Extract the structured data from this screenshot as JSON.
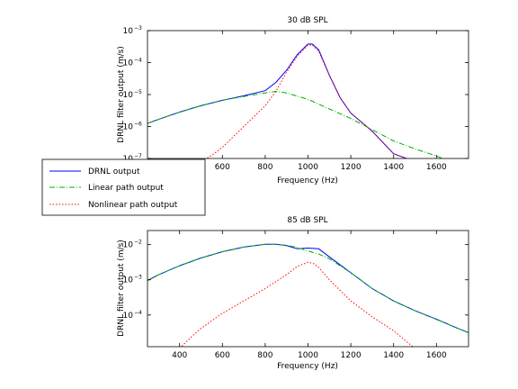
{
  "chart_data": [
    {
      "type": "line",
      "title": "30 dB SPL",
      "xlabel": "Frequency (Hz)",
      "ylabel": "DRNL filter output (m/s)",
      "xlim": [
        250,
        1750
      ],
      "ylim_log10": [
        -7,
        -3
      ],
      "yscale": "log",
      "x_ticks": [
        600,
        800,
        1000,
        1200,
        1400,
        1600
      ],
      "y_ticks": [
        {
          "base": "10",
          "exp": "−3",
          "log": -3
        },
        {
          "base": "10",
          "exp": "−4",
          "log": -4
        },
        {
          "base": "10",
          "exp": "−5",
          "log": -5
        },
        {
          "base": "10",
          "exp": "−6",
          "log": -6
        },
        {
          "base": "10",
          "exp": "−7",
          "log": -7
        }
      ],
      "series": [
        {
          "name": "DRNL output",
          "color": "#0000ff",
          "dash": "",
          "x": [
            250,
            300,
            400,
            500,
            600,
            700,
            800,
            850,
            900,
            950,
            1000,
            1020,
            1050,
            1100,
            1150,
            1200,
            1300,
            1400,
            1500,
            1600,
            1700,
            1750
          ],
          "log_y": [
            -5.9,
            -5.78,
            -5.55,
            -5.35,
            -5.18,
            -5.04,
            -4.88,
            -4.62,
            -4.24,
            -3.75,
            -3.42,
            -3.42,
            -3.6,
            -4.4,
            -5.1,
            -5.58,
            -6.15,
            -6.85,
            -7.1,
            -7.3,
            -7.6,
            -7.7
          ]
        },
        {
          "name": "Linear path output",
          "color": "#00b000",
          "dash": "6,2,1,2",
          "x": [
            250,
            300,
            400,
            500,
            600,
            700,
            800,
            850,
            900,
            1000,
            1100,
            1200,
            1300,
            1400,
            1500,
            1600,
            1700
          ],
          "log_y": [
            -5.9,
            -5.78,
            -5.55,
            -5.35,
            -5.18,
            -5.06,
            -4.95,
            -4.9,
            -4.95,
            -5.15,
            -5.45,
            -5.75,
            -6.1,
            -6.45,
            -6.7,
            -6.92,
            -7.2
          ]
        },
        {
          "name": "Nonlinear path output",
          "color": "#ff0000",
          "dash": "1.5,2",
          "x": [
            480,
            550,
            600,
            700,
            800,
            850,
            900,
            950,
            1000,
            1020,
            1050,
            1100,
            1150,
            1200,
            1300,
            1400,
            1500,
            1600,
            1700
          ],
          "log_y": [
            -7.2,
            -6.9,
            -6.65,
            -6.0,
            -5.35,
            -4.9,
            -4.3,
            -3.8,
            -3.45,
            -3.45,
            -3.65,
            -4.4,
            -5.1,
            -5.58,
            -6.15,
            -6.85,
            -7.1,
            -7.3,
            -7.6
          ]
        }
      ]
    },
    {
      "type": "line",
      "title": "85 dB SPL",
      "xlabel": "Frequency (Hz)",
      "ylabel": "DRNL filter output (m/s)",
      "xlim": [
        250,
        1750
      ],
      "ylim_log10": [
        -4.9,
        -1.6
      ],
      "yscale": "log",
      "x_ticks": [
        400,
        600,
        800,
        1000,
        1200,
        1400,
        1600
      ],
      "y_ticks": [
        {
          "base": "10",
          "exp": "−2",
          "log": -2
        },
        {
          "base": "10",
          "exp": "−3",
          "log": -3
        },
        {
          "base": "10",
          "exp": "−4",
          "log": -4
        }
      ],
      "series": [
        {
          "name": "DRNL output",
          "color": "#0000ff",
          "dash": "",
          "x": [
            250,
            300,
            400,
            500,
            600,
            700,
            800,
            850,
            900,
            950,
            1000,
            1050,
            1100,
            1200,
            1300,
            1400,
            1500,
            1600,
            1700,
            1750
          ],
          "log_y": [
            -3.02,
            -2.86,
            -2.6,
            -2.38,
            -2.2,
            -2.07,
            -1.99,
            -1.99,
            -2.03,
            -2.12,
            -2.1,
            -2.12,
            -2.35,
            -2.8,
            -3.25,
            -3.6,
            -3.88,
            -4.12,
            -4.38,
            -4.5
          ]
        },
        {
          "name": "Linear path output",
          "color": "#00b000",
          "dash": "6,2,1,2",
          "x": [
            250,
            300,
            400,
            500,
            600,
            700,
            800,
            850,
            900,
            950,
            1000,
            1050,
            1100,
            1200,
            1300,
            1400,
            1500,
            1600,
            1700,
            1750
          ],
          "log_y": [
            -3.02,
            -2.86,
            -2.6,
            -2.38,
            -2.2,
            -2.07,
            -1.99,
            -1.99,
            -2.02,
            -2.08,
            -2.18,
            -2.27,
            -2.4,
            -2.8,
            -3.25,
            -3.6,
            -3.88,
            -4.12,
            -4.38,
            -4.5
          ]
        },
        {
          "name": "Nonlinear path output",
          "color": "#ff0000",
          "dash": "1.5,2",
          "x": [
            400,
            450,
            500,
            600,
            700,
            800,
            900,
            950,
            1000,
            1030,
            1050,
            1100,
            1200,
            1300,
            1400,
            1450,
            1500
          ],
          "log_y": [
            -4.95,
            -4.65,
            -4.38,
            -3.95,
            -3.6,
            -3.25,
            -2.85,
            -2.62,
            -2.5,
            -2.55,
            -2.65,
            -3.0,
            -3.6,
            -4.05,
            -4.45,
            -4.7,
            -4.95
          ]
        }
      ]
    }
  ],
  "legend": {
    "items": [
      {
        "label": "DRNL output",
        "color": "#0000ff",
        "dash": ""
      },
      {
        "label": "Linear path output",
        "color": "#00b000",
        "dash": "6,2,1,2"
      },
      {
        "label": "Nonlinear path output",
        "color": "#ff0000",
        "dash": "1.5,2"
      }
    ]
  }
}
